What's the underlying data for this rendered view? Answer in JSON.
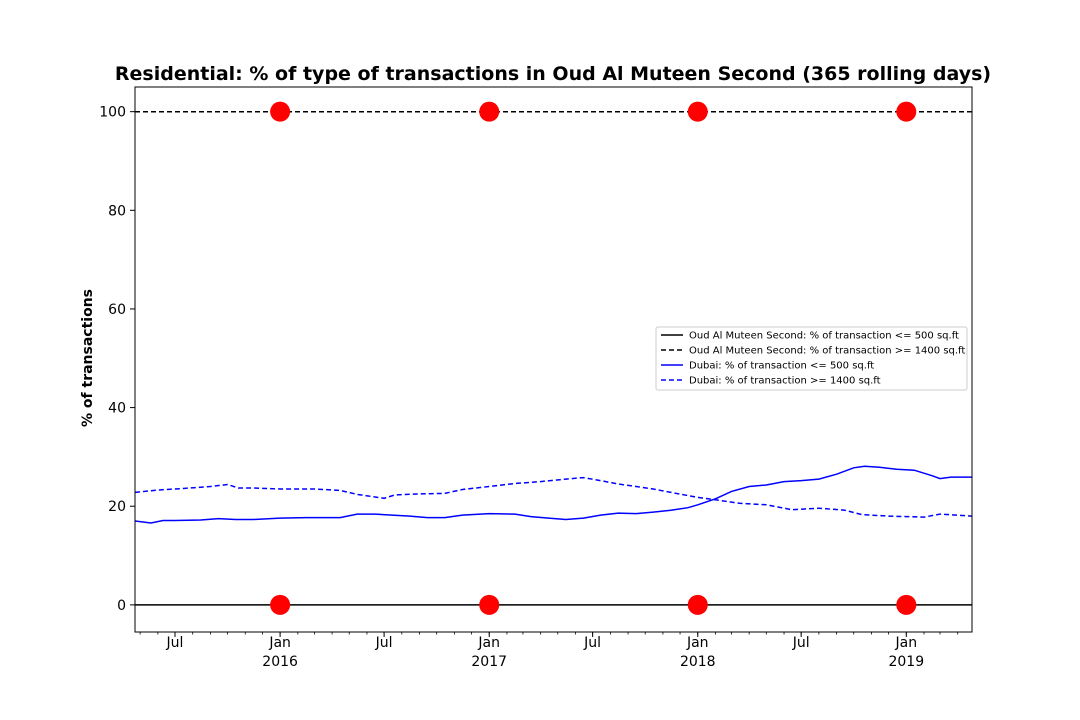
{
  "chart_data": {
    "type": "line",
    "title": "Residential: % of type of transactions in Oud Al Muteen Second (365 rolling days)",
    "ylabel": "% of transactions",
    "xlabel": "",
    "xlim": [
      "2015-04-22",
      "2019-04-26"
    ],
    "ylim": [
      -5.5,
      105
    ],
    "grid": false,
    "legend_position": "center-right",
    "yticks": [
      0,
      20,
      40,
      60,
      80,
      100
    ],
    "xticks": [
      {
        "date": "2015-07-01",
        "label": "Jul",
        "year": ""
      },
      {
        "date": "2016-01-01",
        "label": "Jan",
        "year": "2016"
      },
      {
        "date": "2016-07-01",
        "label": "Jul",
        "year": ""
      },
      {
        "date": "2017-01-01",
        "label": "Jan",
        "year": "2017"
      },
      {
        "date": "2017-07-01",
        "label": "Jul",
        "year": ""
      },
      {
        "date": "2018-01-01",
        "label": "Jan",
        "year": "2018"
      },
      {
        "date": "2018-07-01",
        "label": "Jul",
        "year": ""
      },
      {
        "date": "2019-01-01",
        "label": "Jan",
        "year": "2019"
      }
    ],
    "series": [
      {
        "name": "Oud Al Muteen Second: % of transaction <= 500 sq.ft",
        "color": "#000000",
        "style": "solid",
        "points": [
          [
            "2015-04-22",
            0
          ],
          [
            "2019-04-26",
            0
          ]
        ]
      },
      {
        "name": "Oud Al Muteen Second: % of transaction >= 1400 sq.ft",
        "color": "#000000",
        "style": "dashed",
        "points": [
          [
            "2015-04-22",
            100
          ],
          [
            "2019-04-26",
            100
          ]
        ]
      },
      {
        "name": "Dubai: % of transaction <= 500 sq.ft",
        "color": "#0000ff",
        "style": "solid",
        "points": [
          [
            "2015-04-22",
            17.0
          ],
          [
            "2015-05-20",
            16.6
          ],
          [
            "2015-06-10",
            17.1
          ],
          [
            "2015-07-01",
            17.1
          ],
          [
            "2015-08-15",
            17.2
          ],
          [
            "2015-09-15",
            17.5
          ],
          [
            "2015-10-15",
            17.3
          ],
          [
            "2015-11-15",
            17.3
          ],
          [
            "2016-01-01",
            17.6
          ],
          [
            "2016-02-15",
            17.7
          ],
          [
            "2016-04-15",
            17.7
          ],
          [
            "2016-05-15",
            18.4
          ],
          [
            "2016-06-15",
            18.4
          ],
          [
            "2016-07-15",
            18.2
          ],
          [
            "2016-08-15",
            18.0
          ],
          [
            "2016-09-15",
            17.7
          ],
          [
            "2016-10-15",
            17.7
          ],
          [
            "2016-11-15",
            18.2
          ],
          [
            "2017-01-01",
            18.5
          ],
          [
            "2017-02-15",
            18.4
          ],
          [
            "2017-03-15",
            17.9
          ],
          [
            "2017-04-15",
            17.6
          ],
          [
            "2017-05-15",
            17.3
          ],
          [
            "2017-06-15",
            17.6
          ],
          [
            "2017-07-15",
            18.2
          ],
          [
            "2017-08-15",
            18.6
          ],
          [
            "2017-09-15",
            18.5
          ],
          [
            "2017-10-15",
            18.8
          ],
          [
            "2017-11-15",
            19.2
          ],
          [
            "2017-12-15",
            19.7
          ],
          [
            "2018-01-01",
            20.3
          ],
          [
            "2018-02-01",
            21.5
          ],
          [
            "2018-03-01",
            23.0
          ],
          [
            "2018-04-01",
            24.0
          ],
          [
            "2018-05-01",
            24.3
          ],
          [
            "2018-06-01",
            25.0
          ],
          [
            "2018-07-01",
            25.2
          ],
          [
            "2018-08-01",
            25.5
          ],
          [
            "2018-09-01",
            26.5
          ],
          [
            "2018-10-01",
            27.8
          ],
          [
            "2018-10-20",
            28.1
          ],
          [
            "2018-11-15",
            27.9
          ],
          [
            "2018-12-15",
            27.5
          ],
          [
            "2019-01-15",
            27.3
          ],
          [
            "2019-02-15",
            26.2
          ],
          [
            "2019-03-01",
            25.6
          ],
          [
            "2019-03-20",
            25.9
          ],
          [
            "2019-04-26",
            25.9
          ]
        ]
      },
      {
        "name": "Dubai: % of transaction >= 1400 sq.ft",
        "color": "#0000ff",
        "style": "dashed",
        "points": [
          [
            "2015-04-22",
            22.8
          ],
          [
            "2015-06-01",
            23.3
          ],
          [
            "2015-07-15",
            23.6
          ],
          [
            "2015-09-01",
            24.0
          ],
          [
            "2015-10-01",
            24.4
          ],
          [
            "2015-10-20",
            23.7
          ],
          [
            "2015-11-15",
            23.7
          ],
          [
            "2016-01-01",
            23.5
          ],
          [
            "2016-03-01",
            23.5
          ],
          [
            "2016-04-15",
            23.2
          ],
          [
            "2016-05-15",
            22.4
          ],
          [
            "2016-07-01",
            21.6
          ],
          [
            "2016-07-20",
            22.3
          ],
          [
            "2016-09-01",
            22.5
          ],
          [
            "2016-10-15",
            22.6
          ],
          [
            "2016-11-15",
            23.4
          ],
          [
            "2017-01-01",
            24.0
          ],
          [
            "2017-02-15",
            24.6
          ],
          [
            "2017-04-01",
            25.0
          ],
          [
            "2017-05-15",
            25.5
          ],
          [
            "2017-06-15",
            25.8
          ],
          [
            "2017-07-15",
            25.2
          ],
          [
            "2017-08-15",
            24.5
          ],
          [
            "2017-09-15",
            24.0
          ],
          [
            "2017-10-15",
            23.5
          ],
          [
            "2017-11-15",
            22.8
          ],
          [
            "2018-01-01",
            21.8
          ],
          [
            "2018-02-01",
            21.3
          ],
          [
            "2018-03-15",
            20.6
          ],
          [
            "2018-05-01",
            20.3
          ],
          [
            "2018-06-15",
            19.3
          ],
          [
            "2018-08-01",
            19.6
          ],
          [
            "2018-09-15",
            19.2
          ],
          [
            "2018-10-15",
            18.3
          ],
          [
            "2018-12-01",
            18.0
          ],
          [
            "2019-01-01",
            17.9
          ],
          [
            "2019-02-01",
            17.8
          ],
          [
            "2019-03-01",
            18.4
          ],
          [
            "2019-04-26",
            18.0
          ]
        ]
      }
    ],
    "markers": {
      "color": "#ff0000",
      "points": [
        [
          "2016-01-01",
          100
        ],
        [
          "2017-01-01",
          100
        ],
        [
          "2018-01-01",
          100
        ],
        [
          "2019-01-01",
          100
        ],
        [
          "2016-01-01",
          0
        ],
        [
          "2017-01-01",
          0
        ],
        [
          "2018-01-01",
          0
        ],
        [
          "2019-01-01",
          0
        ]
      ]
    }
  }
}
